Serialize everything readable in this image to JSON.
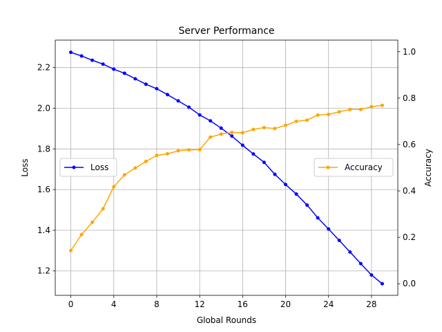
{
  "chart_data": {
    "type": "line",
    "title": "Server Performance",
    "xlabel": "Global Rounds",
    "ylabel_left": "Loss",
    "ylabel_right": "Accuracy",
    "xlim": [
      -1.45,
      30.45
    ],
    "ylim_left": [
      1.08,
      2.335
    ],
    "ylim_right": [
      -0.05,
      1.05
    ],
    "x_ticks": [
      0,
      4,
      8,
      12,
      16,
      20,
      24,
      28
    ],
    "y_left_ticks": [
      1.2,
      1.4,
      1.6,
      1.8,
      2.0,
      2.2
    ],
    "y_right_ticks": [
      0.0,
      0.2,
      0.4,
      0.6,
      0.8,
      1.0
    ],
    "grid": true,
    "x": [
      0,
      1,
      2,
      3,
      4,
      5,
      6,
      7,
      8,
      9,
      10,
      11,
      12,
      13,
      14,
      15,
      16,
      17,
      18,
      19,
      20,
      21,
      22,
      23,
      24,
      25,
      26,
      27,
      28,
      29
    ],
    "series": [
      {
        "name": "Loss",
        "axis": "left",
        "color": "#0000ff",
        "legend_position": "center-left",
        "values": [
          2.275,
          2.257,
          2.236,
          2.217,
          2.192,
          2.172,
          2.145,
          2.118,
          2.096,
          2.067,
          2.036,
          2.005,
          1.967,
          1.938,
          1.902,
          1.863,
          1.818,
          1.775,
          1.734,
          1.675,
          1.625,
          1.578,
          1.524,
          1.461,
          1.406,
          1.35,
          1.293,
          1.236,
          1.18,
          1.137
        ]
      },
      {
        "name": "Accuracy",
        "axis": "right",
        "color": "#ffa500",
        "legend_position": "center-right",
        "values": [
          0.143,
          0.212,
          0.265,
          0.323,
          0.418,
          0.469,
          0.499,
          0.527,
          0.553,
          0.56,
          0.573,
          0.577,
          0.578,
          0.632,
          0.645,
          0.652,
          0.651,
          0.665,
          0.673,
          0.669,
          0.683,
          0.7,
          0.705,
          0.727,
          0.73,
          0.741,
          0.751,
          0.751,
          0.763,
          0.769
        ]
      }
    ]
  }
}
